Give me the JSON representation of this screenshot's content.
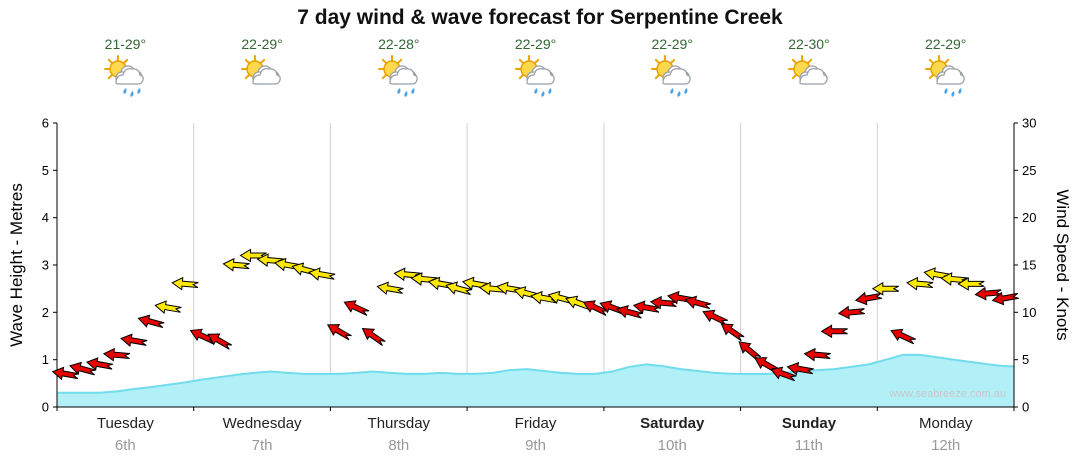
{
  "header": {
    "title": "7 day wind & wave forecast for Serpentine Creek"
  },
  "days": [
    {
      "name": "Tuesday",
      "date": "6th",
      "temp_range": "21-29°",
      "weekend": false,
      "icon": "sun-cloud-showers-icon"
    },
    {
      "name": "Wednesday",
      "date": "7th",
      "temp_range": "22-29°",
      "weekend": false,
      "icon": "sun-cloud-icon"
    },
    {
      "name": "Thursday",
      "date": "8th",
      "temp_range": "22-28°",
      "weekend": false,
      "icon": "sun-cloud-showers-icon"
    },
    {
      "name": "Friday",
      "date": "9th",
      "temp_range": "22-29°",
      "weekend": false,
      "icon": "sun-cloud-showers-icon"
    },
    {
      "name": "Saturday",
      "date": "10th",
      "temp_range": "22-29°",
      "weekend": true,
      "icon": "sun-cloud-showers-icon"
    },
    {
      "name": "Sunday",
      "date": "11th",
      "temp_range": "22-30°",
      "weekend": true,
      "icon": "sun-cloud-icon"
    },
    {
      "name": "Monday",
      "date": "12th",
      "temp_range": "22-29°",
      "weekend": false,
      "icon": "sun-cloud-showers-icon"
    }
  ],
  "palette": {
    "red": "#e60000",
    "yellow": "#ffe800",
    "wave_fill": "#b2f0f8",
    "wave_line": "#70dcec",
    "temp_text": "#336633",
    "separator": "#d0d0d0",
    "watermark_text": "#c8c8c8"
  },
  "chart_data": {
    "type": "combo",
    "title": "7 day wind & wave forecast for Serpentine Creek",
    "categories": [
      "Tuesday",
      "Wednesday",
      "Thursday",
      "Friday",
      "Saturday",
      "Sunday",
      "Monday"
    ],
    "dates": [
      "6th",
      "7th",
      "8th",
      "9th",
      "10th",
      "11th",
      "12th"
    ],
    "left_axis": {
      "label": "Wave Height - Metres",
      "min": 0,
      "max": 6,
      "tick_step": 1
    },
    "right_axis": {
      "label": "Wind Speed - Knots",
      "min": 0,
      "max": 30,
      "tick_step": 5
    },
    "points_per_day": 8,
    "wave_height_m": [
      0.3,
      0.3,
      0.3,
      0.33,
      0.38,
      0.42,
      0.47,
      0.52,
      0.58,
      0.63,
      0.68,
      0.72,
      0.75,
      0.72,
      0.7,
      0.7,
      0.7,
      0.72,
      0.75,
      0.72,
      0.7,
      0.7,
      0.72,
      0.7,
      0.7,
      0.72,
      0.78,
      0.8,
      0.76,
      0.72,
      0.7,
      0.7,
      0.75,
      0.85,
      0.9,
      0.86,
      0.8,
      0.76,
      0.72,
      0.7,
      0.7,
      0.7,
      0.72,
      0.75,
      0.78,
      0.8,
      0.85,
      0.9,
      1.0,
      1.1,
      1.1,
      1.05,
      1.0,
      0.95,
      0.9,
      0.86
    ],
    "wind": {
      "speeds_knots": [
        3.5,
        4,
        4.5,
        5.5,
        7,
        9,
        10.5,
        13,
        7.5,
        7,
        15,
        16,
        15.5,
        15,
        14.5,
        14,
        8,
        10.5,
        7.5,
        12.5,
        14,
        13.5,
        13,
        12.5,
        13,
        12.5,
        12.5,
        12,
        11.5,
        11.5,
        11,
        10.5,
        10.5,
        10,
        10.5,
        11,
        11.5,
        11,
        9.5,
        8,
        6,
        4.5,
        3.5,
        4,
        5.5,
        8,
        10,
        11.5,
        12.5,
        7.5,
        13,
        14,
        13.5,
        13,
        12,
        11.5
      ],
      "colors": [
        "red",
        "red",
        "red",
        "red",
        "red",
        "red",
        "yellow",
        "yellow",
        "red",
        "red",
        "yellow",
        "yellow",
        "yellow",
        "yellow",
        "yellow",
        "yellow",
        "red",
        "red",
        "red",
        "yellow",
        "yellow",
        "yellow",
        "yellow",
        "yellow",
        "yellow",
        "yellow",
        "yellow",
        "yellow",
        "yellow",
        "yellow",
        "yellow",
        "red",
        "red",
        "red",
        "red",
        "red",
        "red",
        "red",
        "red",
        "red",
        "red",
        "red",
        "red",
        "red",
        "red",
        "red",
        "red",
        "red",
        "yellow",
        "red",
        "yellow",
        "yellow",
        "yellow",
        "yellow",
        "red",
        "red"
      ],
      "directions_deg": [
        190,
        195,
        190,
        185,
        190,
        195,
        190,
        185,
        205,
        210,
        185,
        180,
        185,
        190,
        195,
        190,
        210,
        205,
        215,
        190,
        185,
        185,
        190,
        195,
        190,
        185,
        190,
        195,
        190,
        195,
        200,
        205,
        200,
        195,
        190,
        185,
        190,
        195,
        205,
        215,
        220,
        210,
        200,
        190,
        185,
        180,
        175,
        170,
        180,
        205,
        185,
        190,
        185,
        180,
        175,
        170
      ]
    },
    "watermark": "www.seabreeze.com.au"
  }
}
